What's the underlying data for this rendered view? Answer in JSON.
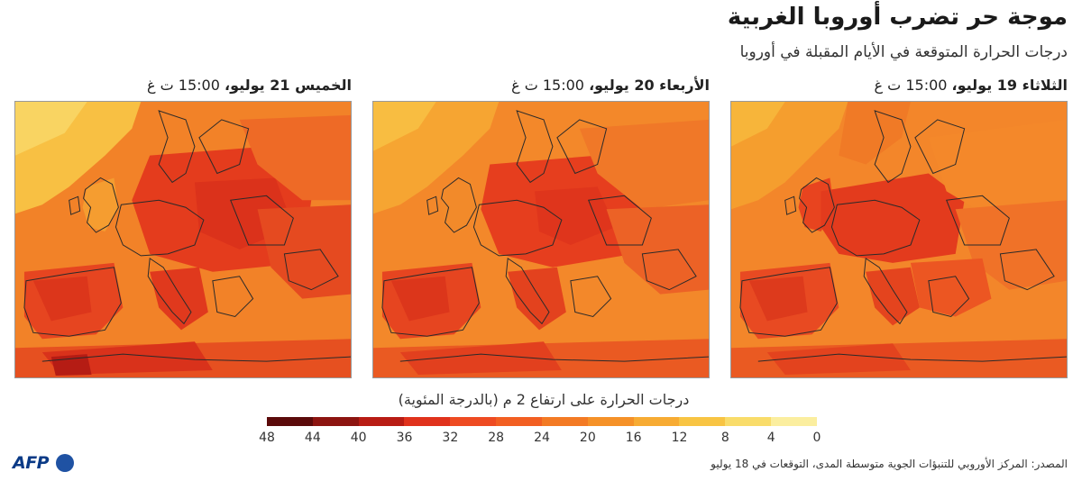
{
  "header": {
    "title": "موجة حر تضرب أوروبا الغربية",
    "subtitle": "درجات الحرارة المتوقعة في الأيام المقبلة في أوروبا"
  },
  "panels": [
    {
      "day": "الثلاثاء 19 يوليو،",
      "time": "15:00 ت غ"
    },
    {
      "day": "الأربعاء 20 يوليو،",
      "time": "15:00 ت غ"
    },
    {
      "day": "الخميس 21 يوليو،",
      "time": "15:00 ت غ"
    }
  ],
  "legend": {
    "title": "درجات الحرارة على ارتفاع 2 م (بالدرجة المئوية)",
    "ticks": [
      "48",
      "44",
      "40",
      "36",
      "32",
      "28",
      "24",
      "20",
      "16",
      "12",
      "8",
      "4",
      "0"
    ],
    "colors": [
      "#5b0a0a",
      "#8c1410",
      "#b81c14",
      "#e0321c",
      "#ee4b22",
      "#f25f22",
      "#f37a24",
      "#f59128",
      "#f7ab33",
      "#f8c443",
      "#f9dc6a",
      "#fbee9f",
      "#fdf8d2"
    ]
  },
  "footer": {
    "logo": "AFP",
    "source": "المصدر: المركز الأوروبي للتنبؤات الجوية متوسطة المدى، التوقعات في 18 يوليو"
  }
}
